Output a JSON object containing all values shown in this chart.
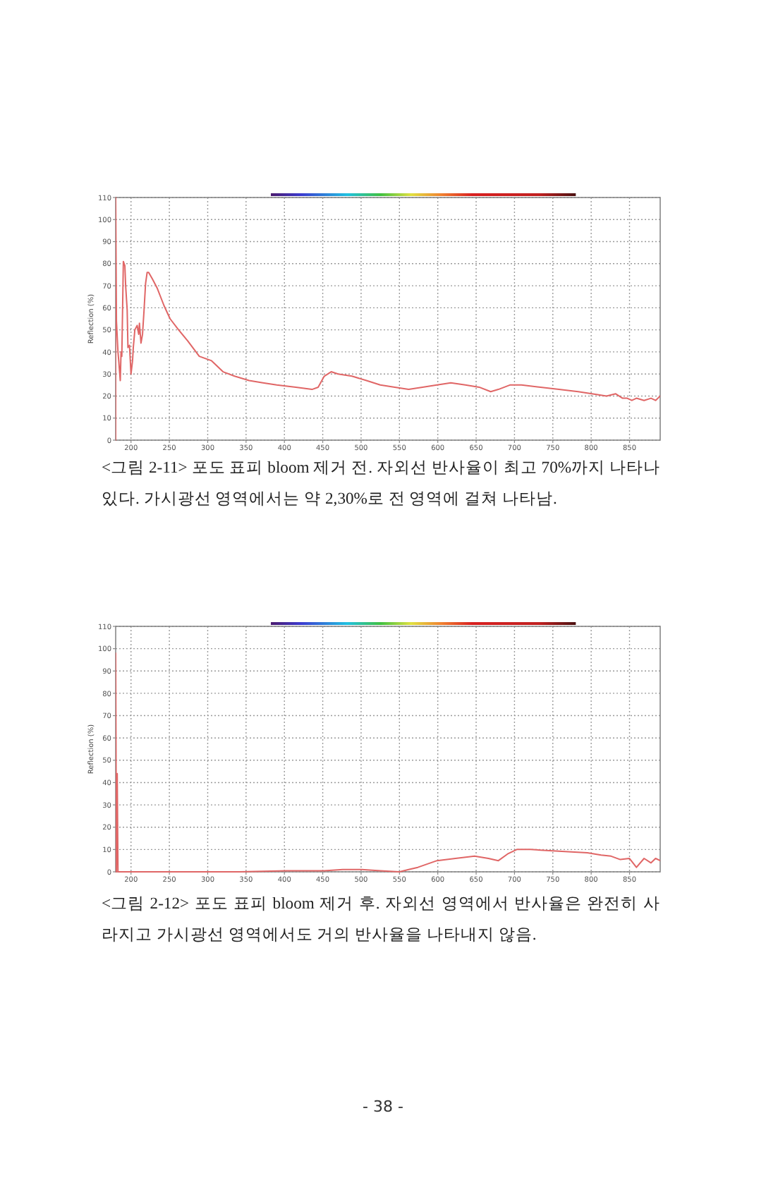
{
  "chart_data": [
    {
      "type": "line",
      "ylabel": "Reflection (%)",
      "xlim": [
        180,
        890
      ],
      "xticks": [
        200,
        250,
        300,
        350,
        400,
        450,
        500,
        550,
        600,
        650,
        700,
        750,
        800,
        850
      ],
      "ylim": [
        0,
        110
      ],
      "yticks": [
        0,
        10,
        20,
        30,
        40,
        50,
        60,
        70,
        80,
        90,
        100,
        110
      ],
      "grid": true,
      "line_style": "solid",
      "series": [
        {
          "color": "#e06666",
          "x": [
            180,
            180,
            181,
            183,
            184,
            186,
            187,
            188,
            189,
            190,
            192,
            193,
            195,
            196,
            198,
            200,
            202,
            203,
            205,
            208,
            210,
            211,
            213,
            215,
            217,
            219,
            221,
            223,
            228,
            234,
            243,
            251,
            262,
            274,
            289,
            305,
            320,
            335,
            354,
            372,
            390,
            415,
            436,
            444,
            452,
            461,
            470,
            488,
            507,
            525,
            544,
            562,
            580,
            599,
            617,
            636,
            654,
            669,
            679,
            694,
            709,
            734,
            758,
            783,
            801,
            820,
            832,
            841,
            847,
            853,
            859,
            869,
            878,
            884,
            890
          ],
          "values": [
            0,
            110,
            54,
            40,
            36,
            27,
            40,
            38,
            59,
            81,
            79,
            70,
            59,
            42,
            43,
            30,
            36,
            42,
            50,
            52,
            48,
            53,
            44,
            48,
            59,
            71,
            76,
            76,
            73,
            69,
            61,
            55,
            50,
            45,
            38,
            36,
            31,
            29,
            27,
            26,
            25,
            24,
            23,
            24,
            29,
            31,
            30,
            29,
            27,
            25,
            24,
            23,
            24,
            25,
            26,
            25,
            24,
            22,
            23,
            25,
            25,
            24,
            23,
            22,
            21,
            20,
            21,
            19,
            19,
            18,
            19,
            18,
            19,
            18,
            20
          ]
        }
      ],
      "annotations": [
        "<그림 2-11> 포도 표피 bloom 제거 전. 자외선 반사율이 최고 70%까지 나타나 있다. 가시광선 영역에서는 약 2,30%로 전 영역에 걸쳐 나타남."
      ]
    },
    {
      "type": "line",
      "ylabel": "Reflection (%)",
      "xlim": [
        180,
        890
      ],
      "xticks": [
        200,
        250,
        300,
        350,
        400,
        450,
        500,
        550,
        600,
        650,
        700,
        750,
        800,
        850
      ],
      "ylim": [
        0,
        110
      ],
      "yticks": [
        0,
        10,
        20,
        30,
        40,
        50,
        60,
        70,
        80,
        90,
        100,
        110
      ],
      "grid": true,
      "line_style": "solid",
      "series": [
        {
          "color": "#e06666",
          "x": [
            180,
            180,
            181,
            182,
            183,
            249,
            341,
            403,
            452,
            476,
            501,
            525,
            550,
            562,
            574,
            599,
            623,
            648,
            666,
            679,
            691,
            703,
            721,
            746,
            770,
            795,
            813,
            826,
            838,
            850,
            859,
            869,
            878,
            884,
            890
          ],
          "values": [
            0,
            98,
            0,
            44,
            0,
            0,
            0,
            0.5,
            0.5,
            1,
            1,
            0.5,
            0,
            1,
            2,
            5,
            6,
            7,
            6,
            5,
            8,
            10,
            10,
            9.5,
            9,
            8.5,
            7.5,
            7,
            5.5,
            6,
            2,
            6,
            4,
            6,
            5
          ]
        }
      ],
      "annotations": [
        "<그림 2-12> 포도 표피 bloom 제거 후. 자외선 영역에서 반사율은 완전히 사라지고 가시광선 영역에서도 거의 반사율을 나타내지 않음.",
        "- 38 -"
      ]
    }
  ]
}
